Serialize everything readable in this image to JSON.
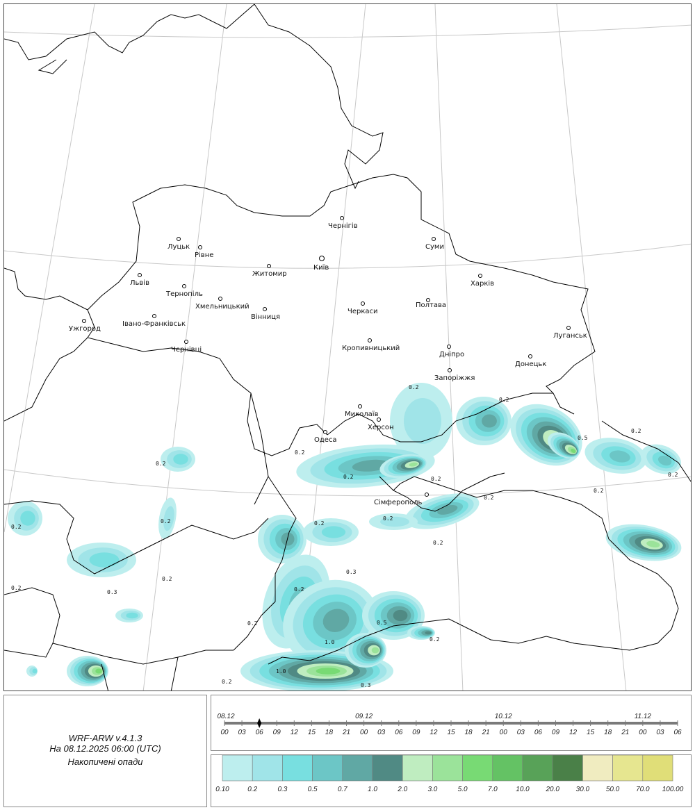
{
  "info": {
    "model": "WRF-ARW v.4.1.3",
    "valid_time": "На 08.12.2025 06:00 (UTC)",
    "product": "Накопичені опади"
  },
  "timeline": {
    "dates": [
      "08.12",
      "09.12",
      "10.12",
      "11.12"
    ],
    "hours": [
      "00",
      "03",
      "06",
      "09",
      "12",
      "15",
      "18",
      "21",
      "00",
      "03",
      "06",
      "09",
      "12",
      "15",
      "18",
      "21",
      "00",
      "03",
      "06",
      "09",
      "12",
      "15",
      "18",
      "21",
      "00",
      "03",
      "06"
    ],
    "selected_index": 2
  },
  "legend": {
    "labels": [
      "0.10",
      "0.2",
      "0.3",
      "0.5",
      "0.7",
      "1.0",
      "2.0",
      "3.0",
      "5.0",
      "7.0",
      "10.0",
      "20.0",
      "30.0",
      "50.0",
      "70.0",
      "100.00"
    ],
    "colors": [
      "#bdeeee",
      "#a0e4e8",
      "#78dfe0",
      "#6cc6c6",
      "#60a8a4",
      "#508a84",
      "#bfedc0",
      "#9be39a",
      "#78da74",
      "#64c264",
      "#58a258",
      "#4a8048",
      "#f0ecc0",
      "#e6e690",
      "#e0de78"
    ]
  },
  "map": {
    "cities": [
      "Луцьк",
      "Рівне",
      "Львів",
      "Тернопіль",
      "Хмельницький",
      "Житомир",
      "Київ",
      "Чернігів",
      "Суми",
      "Харків",
      "Полтава",
      "Черкаси",
      "Вінниця",
      "Ужгород",
      "Івано-Франківськ",
      "Чернівці",
      "Кропивницький",
      "Дніпро",
      "Запоріжжя",
      "Донецьк",
      "Луганськ",
      "Миколаїв",
      "Херсон",
      "Одеса",
      "Сімферополь"
    ],
    "contour_labels": [
      "0.2",
      "0.2",
      "0.2",
      "0.2",
      "0.2",
      "0.2",
      "0.5",
      "0.2",
      "0.2",
      "0.2",
      "0.2",
      "0.2",
      "0.2",
      "0.2",
      "0.2",
      "0.2",
      "0.2",
      "0.3",
      "0.2",
      "0.2",
      "0.3",
      "0.5",
      "0.2",
      "1.0",
      "1.0",
      "0.2",
      "0.3",
      "0.2"
    ]
  }
}
